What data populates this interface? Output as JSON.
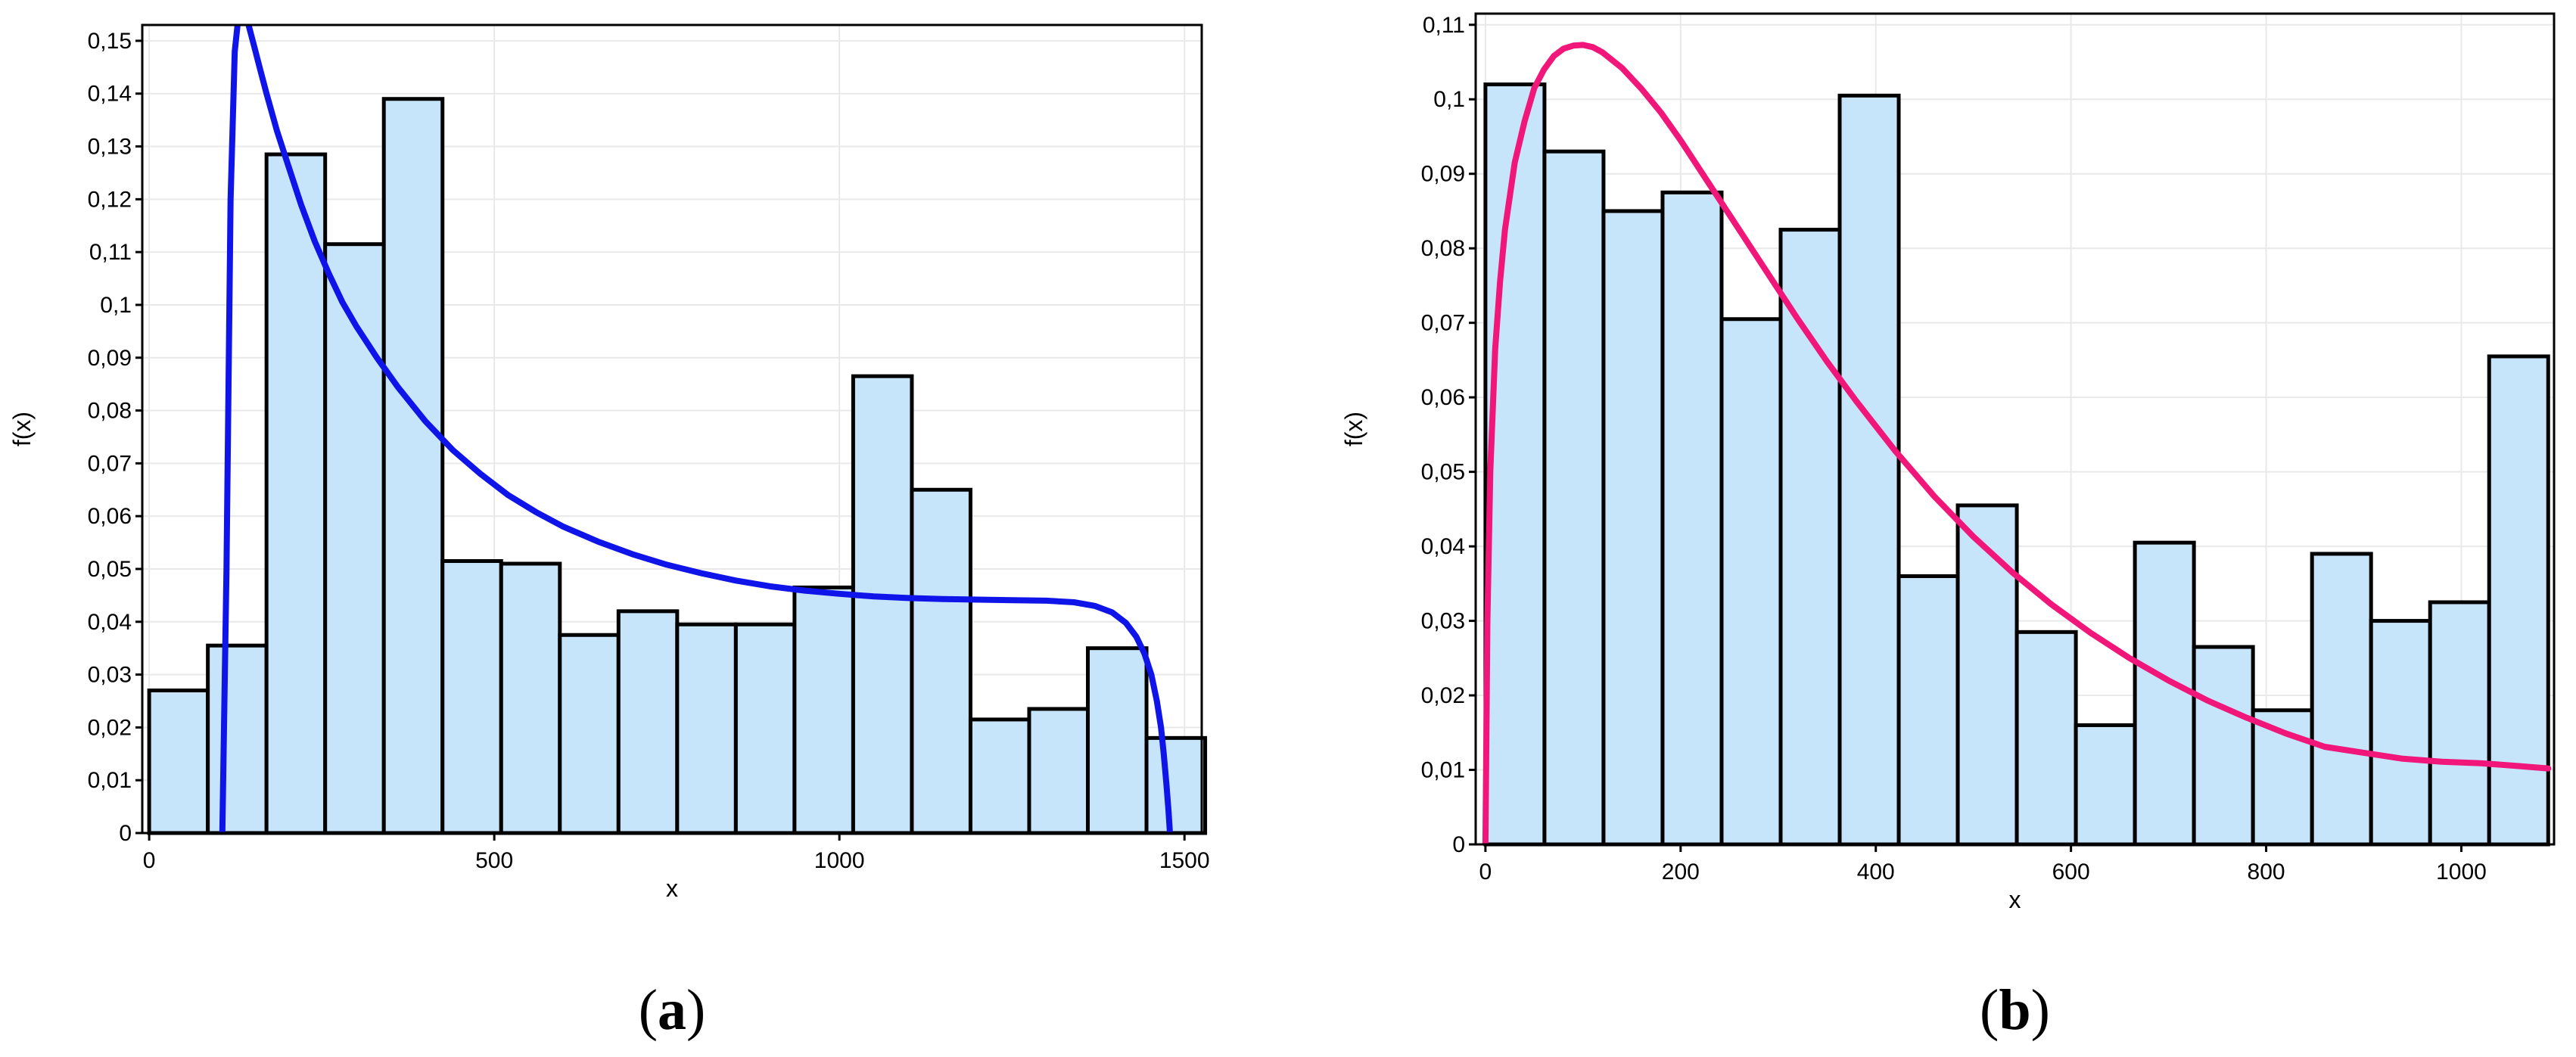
{
  "chart_data": [
    {
      "type": "bar",
      "panel_label": "a",
      "xlabel": "x",
      "ylabel": "f(x)",
      "xlim": [
        -10,
        1525
      ],
      "ylim": [
        0,
        0.153
      ],
      "x_ticks": [
        0,
        500,
        1000,
        1500
      ],
      "x_tick_labels": [
        "0",
        "500",
        "1000",
        "1500"
      ],
      "y_ticks": [
        0,
        0.01,
        0.02,
        0.03,
        0.04,
        0.05,
        0.06,
        0.07,
        0.08,
        0.09,
        0.1,
        0.11,
        0.12,
        0.13,
        0.14,
        0.15
      ],
      "y_tick_labels": [
        "0",
        "0,01",
        "0,02",
        "0,03",
        "0,04",
        "0,05",
        "0,06",
        "0,07",
        "0,08",
        "0,09",
        "0,1",
        "0,11",
        "0,12",
        "0,13",
        "0,14",
        "0,15"
      ],
      "grid": true,
      "bin_edges": [
        0,
        85,
        170,
        255,
        340,
        425,
        510,
        595,
        680,
        765,
        850,
        935,
        1020,
        1105,
        1190,
        1275,
        1360,
        1445,
        1530
      ],
      "values": [
        0.027,
        0.0355,
        0.1285,
        0.1115,
        0.139,
        0.0515,
        0.051,
        0.0375,
        0.042,
        0.0395,
        0.0395,
        0.0465,
        0.0865,
        0.065,
        0.0215,
        0.0235,
        0.035,
        0.018
      ],
      "bar_color": "#c6e5fa",
      "curve_color": "#0f14e8",
      "curve": {
        "x": [
          106,
          112,
          118,
          124,
          128,
          132,
          136,
          140,
          146,
          152,
          160,
          170,
          185,
          200,
          220,
          240,
          260,
          280,
          300,
          330,
          360,
          400,
          440,
          480,
          520,
          560,
          600,
          650,
          700,
          750,
          800,
          850,
          900,
          950,
          1000,
          1050,
          1100,
          1150,
          1200,
          1250,
          1300,
          1340,
          1370,
          1395,
          1415,
          1430,
          1442,
          1452,
          1460,
          1466,
          1470,
          1474,
          1477,
          1479
        ],
        "y": [
          0,
          0.05,
          0.12,
          0.148,
          0.153,
          0.156,
          0.156,
          0.155,
          0.152,
          0.149,
          0.145,
          0.14,
          0.133,
          0.127,
          0.119,
          0.112,
          0.106,
          0.1005,
          0.096,
          0.09,
          0.0845,
          0.078,
          0.0725,
          0.068,
          0.064,
          0.0608,
          0.058,
          0.0552,
          0.0528,
          0.0508,
          0.0492,
          0.0478,
          0.0467,
          0.0459,
          0.0453,
          0.0448,
          0.0445,
          0.0443,
          0.0442,
          0.0441,
          0.044,
          0.0437,
          0.043,
          0.0418,
          0.0398,
          0.0372,
          0.034,
          0.03,
          0.025,
          0.02,
          0.015,
          0.009,
          0.004,
          0
        ]
      }
    },
    {
      "type": "bar",
      "panel_label": "b",
      "xlabel": "x",
      "ylabel": "f(x)",
      "xlim": [
        -10,
        1095
      ],
      "ylim": [
        0,
        0.1115
      ],
      "x_ticks": [
        0,
        200,
        400,
        600,
        800,
        1000
      ],
      "x_tick_labels": [
        "0",
        "200",
        "400",
        "600",
        "800",
        "1000"
      ],
      "y_ticks": [
        0,
        0.01,
        0.02,
        0.03,
        0.04,
        0.05,
        0.06,
        0.07,
        0.08,
        0.09,
        0.1,
        0.11
      ],
      "y_tick_labels": [
        "0",
        "0,01",
        "0,02",
        "0,03",
        "0,04",
        "0,05",
        "0,06",
        "0,07",
        "0,08",
        "0,09",
        "0,1",
        "0,11"
      ],
      "grid": true,
      "bin_edges": [
        0,
        60.5,
        121,
        181.5,
        242,
        302.5,
        363,
        423.5,
        484,
        544.5,
        605,
        665.5,
        726,
        786.5,
        847,
        907.5,
        968,
        1028.5,
        1089
      ],
      "values": [
        0.102,
        0.093,
        0.085,
        0.0875,
        0.0705,
        0.0825,
        0.1005,
        0.036,
        0.0455,
        0.0285,
        0.016,
        0.0405,
        0.0265,
        0.018,
        0.039,
        0.03,
        0.0325,
        0.0655
      ],
      "bar_color": "#c6e5fa",
      "curve_color": "#f0167a",
      "curve": {
        "x": [
          0,
          2,
          5,
          10,
          15,
          20,
          30,
          40,
          50,
          60,
          70,
          80,
          90,
          100,
          110,
          120,
          140,
          160,
          180,
          200,
          230,
          260,
          290,
          320,
          350,
          380,
          420,
          460,
          500,
          540,
          580,
          620,
          660,
          700,
          740,
          780,
          820,
          860,
          900,
          940,
          980,
          1020,
          1060,
          1089
        ],
        "y": [
          0,
          0.03,
          0.05,
          0.0665,
          0.0755,
          0.0825,
          0.0915,
          0.097,
          0.1015,
          0.104,
          0.1058,
          0.1068,
          0.1072,
          0.1073,
          0.107,
          0.1063,
          0.1042,
          0.1014,
          0.0982,
          0.0945,
          0.0885,
          0.0825,
          0.0765,
          0.0705,
          0.0648,
          0.0595,
          0.0528,
          0.0467,
          0.0413,
          0.0365,
          0.0322,
          0.0284,
          0.025,
          0.022,
          0.0193,
          0.017,
          0.0149,
          0.0131,
          0.0123,
          0.0115,
          0.0111,
          0.0109,
          0.0105,
          0.0102
        ]
      }
    }
  ]
}
